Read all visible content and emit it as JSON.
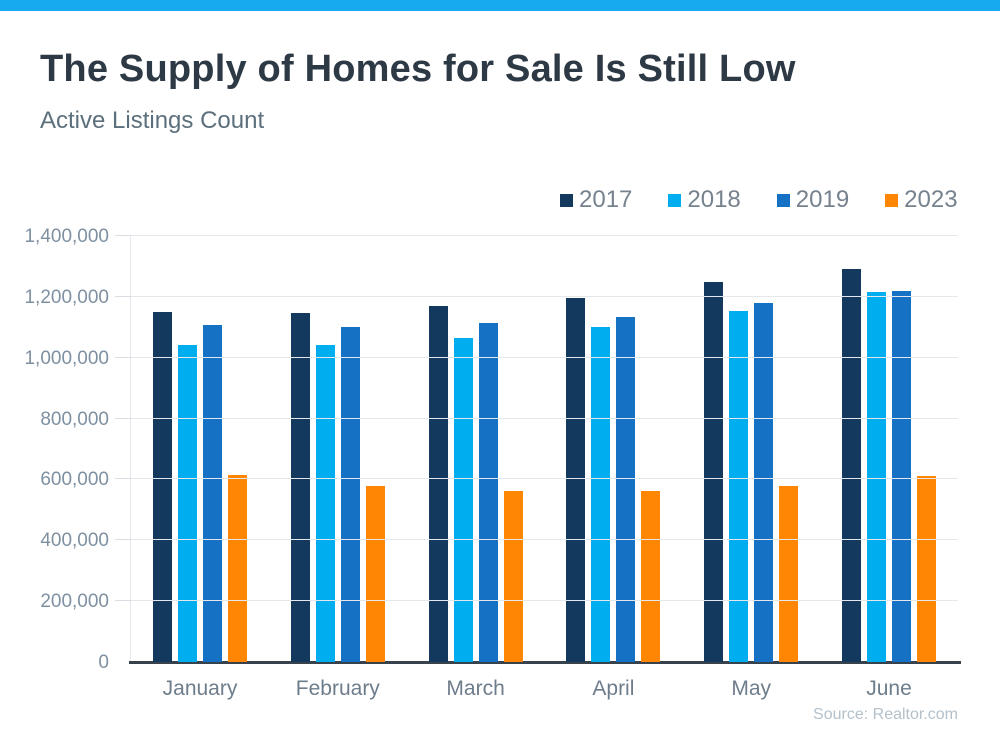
{
  "page": {
    "title": "The Supply of Homes for Sale Is Still Low",
    "subtitle": "Active Listings Count",
    "source": "Source: Realtor.com",
    "accent_bar_color": "#18aaee"
  },
  "chart_data": {
    "type": "bar",
    "title": "The Supply of Homes for Sale Is Still Low",
    "subtitle": "Active Listings Count",
    "categories": [
      "January",
      "February",
      "March",
      "April",
      "May",
      "June"
    ],
    "series": [
      {
        "name": "2017",
        "color": "#13395f",
        "values": [
          1150000,
          1148000,
          1170000,
          1196000,
          1250000,
          1290000
        ]
      },
      {
        "name": "2018",
        "color": "#00aeef",
        "values": [
          1043000,
          1041000,
          1065000,
          1100000,
          1154000,
          1215000
        ]
      },
      {
        "name": "2019",
        "color": "#1471c4",
        "values": [
          1106000,
          1101000,
          1114000,
          1135000,
          1180000,
          1219000
        ]
      },
      {
        "name": "2023",
        "color": "#fe8603",
        "values": [
          616000,
          578000,
          561000,
          563000,
          580000,
          612000
        ]
      }
    ],
    "xlabel": "",
    "ylabel": "",
    "ylim": [
      0,
      1400000
    ],
    "ytick_step": 200000,
    "ytick_labels": [
      "0",
      "200,000",
      "400,000",
      "600,000",
      "800,000",
      "1,000,000",
      "1,200,000",
      "1,400,000"
    ],
    "grid": true,
    "legend_position": "top-right",
    "source": "Source: Realtor.com"
  }
}
